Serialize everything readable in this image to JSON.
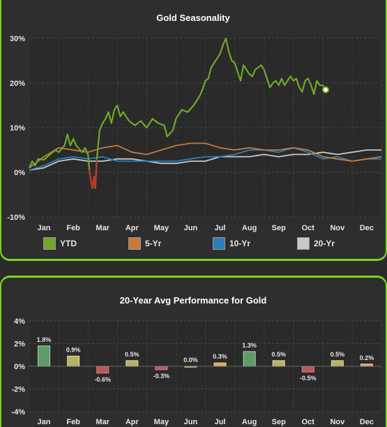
{
  "chart_data": [
    {
      "type": "line",
      "title": "Gold Seasonality",
      "x_labels": [
        "Jan",
        "Feb",
        "Mar",
        "Apr",
        "May",
        "Jun",
        "Jul",
        "Aug",
        "Sep",
        "Oct",
        "Nov",
        "Dec"
      ],
      "y_ticks": [
        "30%",
        "20%",
        "10%",
        "0%",
        "-10%"
      ],
      "ylim": [
        -10,
        30
      ],
      "grid": true,
      "legend_position": "bottom",
      "series": [
        {
          "name": "YTD",
          "color": "#6fa82a",
          "points": [
            [
              0.0,
              1.0
            ],
            [
              0.1,
              2.5
            ],
            [
              0.2,
              1.5
            ],
            [
              0.3,
              3.0
            ],
            [
              0.5,
              2.8
            ],
            [
              0.7,
              4.0
            ],
            [
              0.9,
              5.0
            ],
            [
              1.0,
              4.5
            ],
            [
              1.2,
              6.0
            ],
            [
              1.3,
              8.5
            ],
            [
              1.4,
              6.0
            ],
            [
              1.5,
              7.5
            ],
            [
              1.6,
              6.0
            ],
            [
              1.8,
              4.5
            ],
            [
              1.9,
              5.5
            ],
            [
              2.0,
              4.0
            ],
            [
              2.05,
              0.5
            ],
            [
              2.1,
              -2.0
            ],
            [
              2.15,
              -3.5
            ],
            [
              2.2,
              -1.0
            ],
            [
              2.25,
              -3.5
            ],
            [
              2.3,
              3.0
            ],
            [
              2.4,
              9.5
            ],
            [
              2.5,
              11.0
            ],
            [
              2.6,
              12.0
            ],
            [
              2.7,
              13.5
            ],
            [
              2.8,
              11.0
            ],
            [
              2.9,
              14.0
            ],
            [
              3.0,
              15.0
            ],
            [
              3.1,
              12.5
            ],
            [
              3.2,
              13.5
            ],
            [
              3.4,
              11.5
            ],
            [
              3.6,
              10.5
            ],
            [
              3.8,
              11.5
            ],
            [
              4.0,
              10.0
            ],
            [
              4.2,
              12.0
            ],
            [
              4.4,
              11.0
            ],
            [
              4.6,
              10.5
            ],
            [
              4.7,
              8.0
            ],
            [
              4.9,
              9.5
            ],
            [
              5.0,
              12.0
            ],
            [
              5.2,
              14.0
            ],
            [
              5.4,
              13.5
            ],
            [
              5.6,
              15.0
            ],
            [
              5.8,
              17.0
            ],
            [
              5.9,
              18.5
            ],
            [
              6.0,
              20.5
            ],
            [
              6.1,
              21.0
            ],
            [
              6.2,
              23.5
            ],
            [
              6.3,
              24.5
            ],
            [
              6.4,
              25.5
            ],
            [
              6.5,
              26.5
            ],
            [
              6.6,
              28.5
            ],
            [
              6.7,
              30.0
            ],
            [
              6.8,
              27.0
            ],
            [
              6.9,
              25.0
            ],
            [
              7.0,
              24.5
            ],
            [
              7.1,
              22.5
            ],
            [
              7.2,
              20.5
            ],
            [
              7.3,
              24.0
            ],
            [
              7.4,
              23.0
            ],
            [
              7.5,
              22.0
            ],
            [
              7.6,
              21.5
            ],
            [
              7.7,
              23.0
            ],
            [
              7.8,
              23.5
            ],
            [
              7.9,
              24.0
            ],
            [
              8.0,
              23.0
            ],
            [
              8.1,
              21.0
            ],
            [
              8.2,
              19.0
            ],
            [
              8.3,
              20.0
            ],
            [
              8.4,
              20.5
            ],
            [
              8.5,
              19.5
            ],
            [
              8.6,
              21.0
            ],
            [
              8.7,
              19.5
            ],
            [
              8.8,
              20.5
            ],
            [
              8.9,
              21.5
            ],
            [
              9.0,
              20.5
            ],
            [
              9.1,
              21.0
            ],
            [
              9.2,
              19.0
            ],
            [
              9.3,
              18.0
            ],
            [
              9.4,
              20.5
            ],
            [
              9.5,
              21.0
            ],
            [
              9.6,
              19.5
            ],
            [
              9.7,
              17.5
            ],
            [
              9.8,
              20.5
            ],
            [
              9.9,
              19.5
            ],
            [
              10.0,
              19.5
            ],
            [
              10.1,
              18.5
            ]
          ]
        },
        {
          "name": "5-Yr",
          "color": "#c87a3a",
          "points": [
            [
              0.0,
              1.0
            ],
            [
              0.5,
              3.5
            ],
            [
              1.0,
              5.5
            ],
            [
              1.5,
              5.0
            ],
            [
              2.0,
              4.5
            ],
            [
              2.5,
              5.5
            ],
            [
              3.0,
              6.0
            ],
            [
              3.5,
              4.5
            ],
            [
              4.0,
              4.0
            ],
            [
              4.5,
              5.0
            ],
            [
              5.0,
              6.0
            ],
            [
              5.5,
              6.5
            ],
            [
              6.0,
              6.5
            ],
            [
              6.5,
              5.5
            ],
            [
              7.0,
              5.0
            ],
            [
              7.5,
              5.5
            ],
            [
              8.0,
              5.0
            ],
            [
              8.5,
              5.0
            ],
            [
              9.0,
              5.5
            ],
            [
              9.5,
              5.0
            ],
            [
              10.0,
              3.5
            ],
            [
              10.5,
              3.0
            ],
            [
              11.0,
              2.5
            ],
            [
              11.5,
              3.0
            ],
            [
              12.0,
              3.5
            ]
          ]
        },
        {
          "name": "10-Yr",
          "color": "#2b7fb8",
          "points": [
            [
              0.0,
              0.5
            ],
            [
              0.5,
              1.5
            ],
            [
              1.0,
              3.0
            ],
            [
              1.5,
              3.5
            ],
            [
              2.0,
              3.0
            ],
            [
              2.5,
              3.5
            ],
            [
              3.0,
              2.5
            ],
            [
              3.5,
              2.5
            ],
            [
              4.0,
              2.5
            ],
            [
              4.5,
              2.5
            ],
            [
              5.0,
              2.5
            ],
            [
              5.5,
              3.0
            ],
            [
              6.0,
              3.5
            ],
            [
              6.5,
              3.5
            ],
            [
              7.0,
              4.0
            ],
            [
              7.5,
              5.0
            ],
            [
              8.0,
              5.0
            ],
            [
              8.5,
              4.5
            ],
            [
              9.0,
              5.5
            ],
            [
              9.5,
              4.5
            ],
            [
              10.0,
              3.0
            ],
            [
              10.5,
              3.5
            ],
            [
              11.0,
              2.5
            ],
            [
              11.5,
              3.0
            ],
            [
              12.0,
              3.0
            ]
          ]
        },
        {
          "name": "20-Yr",
          "color": "#c8c8c8",
          "points": [
            [
              0.0,
              0.5
            ],
            [
              0.5,
              1.0
            ],
            [
              1.0,
              2.5
            ],
            [
              1.5,
              3.0
            ],
            [
              2.0,
              2.5
            ],
            [
              2.5,
              2.5
            ],
            [
              3.0,
              3.0
            ],
            [
              3.5,
              3.0
            ],
            [
              4.0,
              2.5
            ],
            [
              4.5,
              2.0
            ],
            [
              5.0,
              2.0
            ],
            [
              5.5,
              2.5
            ],
            [
              6.0,
              2.5
            ],
            [
              6.5,
              3.5
            ],
            [
              7.0,
              3.5
            ],
            [
              7.5,
              3.5
            ],
            [
              8.0,
              4.0
            ],
            [
              8.5,
              3.5
            ],
            [
              9.0,
              4.0
            ],
            [
              9.5,
              4.0
            ],
            [
              10.0,
              4.5
            ],
            [
              10.5,
              4.0
            ],
            [
              11.0,
              4.5
            ],
            [
              11.5,
              5.0
            ],
            [
              12.0,
              5.0
            ]
          ]
        }
      ]
    },
    {
      "type": "bar",
      "title": "20-Year Avg Performance for Gold",
      "categories": [
        "Jan",
        "Feb",
        "Mar",
        "Apr",
        "May",
        "Jun",
        "Jul",
        "Aug",
        "Sep",
        "Oct",
        "Nov",
        "Dec"
      ],
      "values": [
        1.8,
        0.9,
        -0.6,
        0.5,
        -0.3,
        0.0,
        0.3,
        1.3,
        0.5,
        -0.5,
        0.5,
        0.2
      ],
      "value_labels": [
        "1.8%",
        "0.9%",
        "-0.6%",
        "0.5%",
        "-0.3%",
        "0.0%",
        "0.3%",
        "1.3%",
        "0.5%",
        "-0.5%",
        "0.5%",
        "0.2%"
      ],
      "y_ticks": [
        "4%",
        "2%",
        "0%",
        "-2%",
        "-4%"
      ],
      "ylim": [
        -4,
        4
      ],
      "grid": true
    }
  ],
  "colors": {
    "accent": "#7ed321",
    "positive_strong": "#5e9a6a",
    "positive_mid": "#b7b06a",
    "positive_weak": "#d6a86a",
    "negative": "#b95a5a"
  }
}
